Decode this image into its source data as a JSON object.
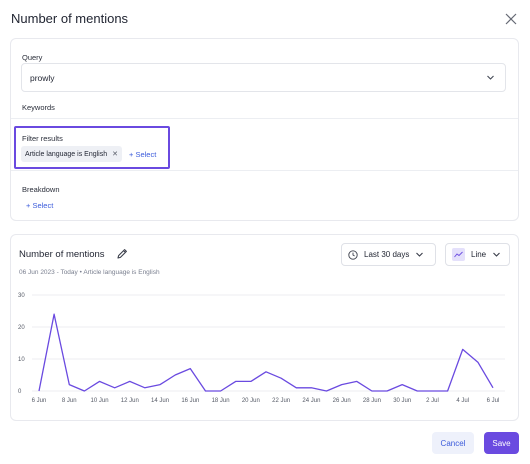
{
  "modal": {
    "title": "Number of mentions"
  },
  "config": {
    "query_label": "Query",
    "query_value": "prowly",
    "keywords_label": "Keywords",
    "filter_label": "Filter results",
    "filter_chip": "Article language is English",
    "filter_add": "+ Select",
    "breakdown_label": "Breakdown",
    "breakdown_add": "+ Select"
  },
  "chart_panel": {
    "title": "Number of mentions",
    "subtitle": "06 Jun 2023 - Today • Article language is English",
    "range_select": "Last 30 days",
    "type_select": "Line"
  },
  "footer": {
    "cancel": "Cancel",
    "save": "Save"
  },
  "colors": {
    "accent": "#6a4ae0",
    "link": "#3b5bdb",
    "line": "#6a4ae0"
  },
  "chart_data": {
    "type": "line",
    "title": "",
    "xlabel": "",
    "ylabel": "",
    "ylim": [
      0,
      30
    ],
    "yticks": [
      0,
      10,
      20,
      30
    ],
    "grid": true,
    "x": [
      "6 Jun",
      "7 Jun",
      "8 Jun",
      "9 Jun",
      "10 Jun",
      "11 Jun",
      "12 Jun",
      "13 Jun",
      "14 Jun",
      "15 Jun",
      "16 Jun",
      "17 Jun",
      "18 Jun",
      "19 Jun",
      "20 Jun",
      "21 Jun",
      "22 Jun",
      "23 Jun",
      "24 Jun",
      "25 Jun",
      "26 Jun",
      "27 Jun",
      "28 Jun",
      "29 Jun",
      "30 Jun",
      "1 Jul",
      "2 Jul",
      "3 Jul",
      "4 Jul",
      "5 Jul",
      "6 Jul"
    ],
    "xtick_labels": [
      "6 Jun",
      "8 Jun",
      "10 Jun",
      "12 Jun",
      "14 Jun",
      "16 Jun",
      "18 Jun",
      "20 Jun",
      "22 Jun",
      "24 Jun",
      "26 Jun",
      "28 Jun",
      "30 Jun",
      "2 Jul",
      "4 Jul",
      "6 Jul"
    ],
    "series": [
      {
        "values": [
          0,
          24,
          2,
          0,
          3,
          1,
          3,
          1,
          2,
          5,
          7,
          0,
          0,
          3,
          3,
          6,
          4,
          1,
          1,
          0,
          2,
          3,
          0,
          0,
          2,
          0,
          0,
          0,
          13,
          9,
          1
        ]
      }
    ]
  }
}
